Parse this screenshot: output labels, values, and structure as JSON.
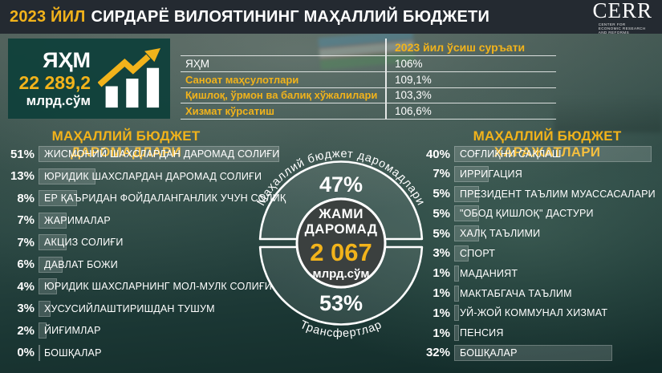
{
  "header": {
    "year": "2023 ЙИЛ",
    "title": "СИРДАРЁ ВИЛОЯТИНИНГ МАҲАЛЛИЙ БЮДЖЕТИ",
    "logo_text": "CERR",
    "logo_tagline": "CENTER FOR ECONOMIC RESEARCH AND REFORMS"
  },
  "stat": {
    "label": "ЯҲМ",
    "value": "22 289,2",
    "unit": "млрд.сўм"
  },
  "growth_table": {
    "header": "2023 йил ўсиш суръати",
    "rows": [
      {
        "label": "ЯҲМ",
        "value": "106%"
      },
      {
        "label": "Саноат маҳсулотлари",
        "value": "109,1%"
      },
      {
        "label": "Қишлоқ, ўрмон ва балиқ хўжалилари",
        "value": "103,3%"
      },
      {
        "label": "Хизмат кўрсатиш",
        "value": "106,6%"
      }
    ]
  },
  "income": {
    "title": "МАҲАЛЛИЙ БЮДЖЕТ ДАРОМАДЛАРИ",
    "items": [
      {
        "pct": "51%",
        "label": "ЖИСМОНИЙ ШАХСЛАРДАН ДАРОМАД СОЛИҒИ"
      },
      {
        "pct": "13%",
        "label": "ЮРИДИК ШАХСЛАРДАН ДАРОМАД СОЛИҒИ"
      },
      {
        "pct": "8%",
        "label": "ЕР ҚАЪРИДАН ФОЙДАЛАНГАНЛИК УЧУН СОЛИҚ"
      },
      {
        "pct": "7%",
        "label": "ЖАРИМАЛАР"
      },
      {
        "pct": "7%",
        "label": "АКЦИЗ СОЛИҒИ"
      },
      {
        "pct": "6%",
        "label": "ДАВЛАТ БОЖИ"
      },
      {
        "pct": "4%",
        "label": "ЮРИДИК ШАХСЛАРНИНГ МОЛ-МУЛК СОЛИҒИ"
      },
      {
        "pct": "3%",
        "label": "ХУСУСИЙЛАШТИРИШДАН ТУШУМ"
      },
      {
        "pct": "2%",
        "label": "ЙИҒИМЛАР"
      },
      {
        "pct": "0%",
        "label": "БОШҚАЛАР"
      }
    ]
  },
  "expense": {
    "title": "МАҲАЛЛИЙ БЮДЖЕТ ХАРАЖАТЛАРИ",
    "items": [
      {
        "pct": "40%",
        "label": "СОҒЛИҚНИ САҚЛАШ"
      },
      {
        "pct": "7%",
        "label": "ИРРИГАЦИЯ"
      },
      {
        "pct": "5%",
        "label": "ПРЕЗИДЕНТ ТАЪЛИМ МУАССАСАЛАРИ"
      },
      {
        "pct": "5%",
        "label": "\"ОБОД ҚИШЛОҚ\" ДАСТУРИ"
      },
      {
        "pct": "5%",
        "label": "ХАЛҚ ТАЪЛИМИ"
      },
      {
        "pct": "3%",
        "label": "СПОРТ"
      },
      {
        "pct": "1%",
        "label": "МАДАНИЯТ"
      },
      {
        "pct": "1%",
        "label": "МАКТАБГАЧА ТАЪЛИМ"
      },
      {
        "pct": "1%",
        "label": "УЙ-ЖОЙ КОММУНАЛ ХИЗМАТ"
      },
      {
        "pct": "1%",
        "label": "ПЕНСИЯ"
      },
      {
        "pct": "32%",
        "label": "БОШҚАЛАР"
      }
    ]
  },
  "donut": {
    "arc_top_label": "Маҳаллий бюджет даромадлари",
    "top_pct": "47%",
    "center_line1": "ЖАМИ",
    "center_line2": "ДАРОМАД",
    "center_value": "2 067",
    "center_unit": "млрд.сўм",
    "bottom_pct": "53%",
    "arc_bottom_label": "Трансфертлар"
  },
  "colors": {
    "accent_yellow": "#f2b31b",
    "stat_card_bg": "#0e403a",
    "header_bg": "#242a31",
    "donut_center": "#3b403f"
  },
  "chart_data": [
    {
      "type": "table",
      "title": "2023 йил ўсиш суръати",
      "categories": [
        "ЯҲМ",
        "Саноат маҳсулотлари",
        "Қишлоқ, ўрмон ва балиқ хўжалилари",
        "Хизмат кўрсатиш"
      ],
      "values": [
        106,
        109.1,
        103.3,
        106.6
      ],
      "unit": "%"
    },
    {
      "type": "pie",
      "title": "ЖАМИ ДАРОМАД — 2 067 млрд.сўм",
      "categories": [
        "Маҳаллий бюджет даромадлари",
        "Трансфертлар"
      ],
      "values": [
        47,
        53
      ],
      "unit": "%",
      "center_total": "2 067 млрд.сўм"
    },
    {
      "type": "bar",
      "title": "МАҲАЛЛИЙ БЮДЖЕТ ДАРОМАДЛАРИ",
      "categories": [
        "ЖИСМОНИЙ ШАХСЛАРДАН ДАРОМАД СОЛИҒИ",
        "ЮРИДИК ШАХСЛАРДАН ДАРОМАД СОЛИҒИ",
        "ЕР ҚАЪРИДАН ФОЙДАЛАНГАНЛИК УЧУН СОЛИҚ",
        "ЖАРИМАЛАР",
        "АКЦИЗ СОЛИҒИ",
        "ДАВЛАТ БОЖИ",
        "ЮРИДИК ШАХСЛАРНИНГ МОЛ-МУЛК СОЛИҒИ",
        "ХУСУСИЙЛАШТИРИШДАН ТУШУМ",
        "ЙИҒИМЛАР",
        "БОШҚАЛАР"
      ],
      "values": [
        51,
        13,
        8,
        7,
        7,
        6,
        4,
        3,
        2,
        0
      ],
      "unit": "%"
    },
    {
      "type": "bar",
      "title": "МАҲАЛЛИЙ БЮДЖЕТ ХАРАЖАТЛАРИ",
      "categories": [
        "СОҒЛИҚНИ САҚЛАШ",
        "ИРРИГАЦИЯ",
        "ПРЕЗИДЕНТ ТАЪЛИМ МУАССАСАЛАРИ",
        "\"ОБОД ҚИШЛОҚ\" ДАСТУРИ",
        "ХАЛҚ ТАЪЛИМИ",
        "СПОРТ",
        "МАДАНИЯТ",
        "МАКТАБГАЧА ТАЪЛИМ",
        "УЙ-ЖОЙ КОММУНАЛ ХИЗМАТ",
        "ПЕНСИЯ",
        "БОШҚАЛАР"
      ],
      "values": [
        40,
        7,
        5,
        5,
        5,
        3,
        1,
        1,
        1,
        1,
        32
      ],
      "unit": "%"
    },
    {
      "type": "table",
      "title": "ЯҲМ",
      "categories": [
        "ЯҲМ"
      ],
      "values": [
        22289.2
      ],
      "unit": "млрд.сўм"
    }
  ]
}
